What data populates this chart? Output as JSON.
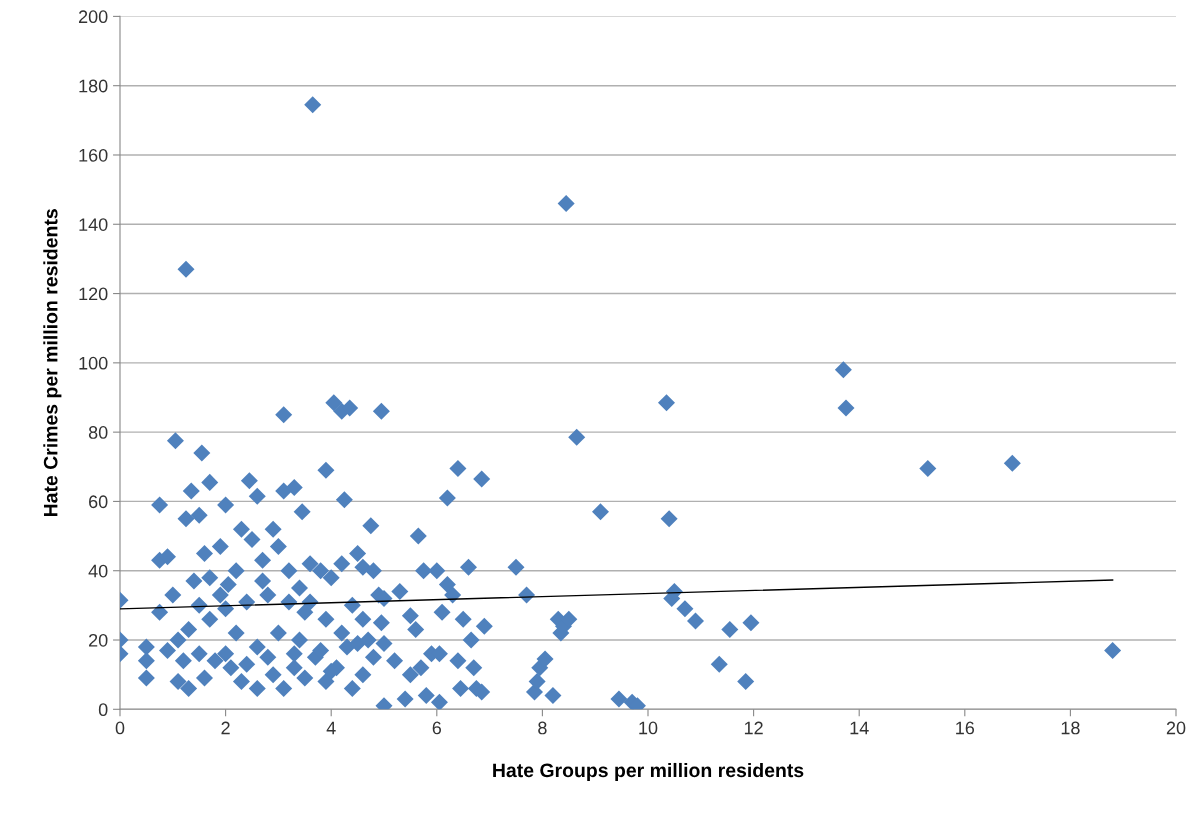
{
  "chart_data": {
    "type": "scatter",
    "xlabel": "Hate Groups per million residents",
    "ylabel": "Hate Crimes per million residents",
    "xlim": [
      0,
      20
    ],
    "xticks": [
      0,
      2,
      4,
      6,
      8,
      10,
      12,
      14,
      16,
      18,
      20
    ],
    "ylim": [
      0,
      200
    ],
    "yticks": [
      0,
      20,
      40,
      60,
      80,
      100,
      120,
      140,
      160,
      180,
      200
    ],
    "grid": "y",
    "legend": false,
    "series": [
      {
        "color": "#4f81bd",
        "marker": "diamond",
        "x": [
          3.65,
          1.25,
          8.45,
          13.7,
          13.75,
          10.35,
          15.3,
          16.9,
          18.8,
          8.65,
          9.1,
          10.4,
          10.45,
          10.5,
          10.7,
          10.9,
          11.35,
          11.55,
          11.85,
          11.95,
          9.45,
          9.7,
          9.8,
          7.5,
          7.7,
          7.85,
          7.9,
          7.95,
          8.05,
          8.2,
          8.3,
          8.35,
          8.4,
          8.5,
          6.85,
          6.2,
          6.4,
          5.65,
          4.95,
          4.2,
          4.35,
          4.05,
          3.1,
          1.05,
          1.55,
          1.7,
          0.75,
          1.35,
          1.25,
          2.0,
          3.9,
          4.25,
          4.75,
          2.45,
          2.6,
          3.1,
          3.3,
          3.45,
          0,
          0,
          0,
          0.5,
          0.5,
          0.5,
          0.75,
          0.75,
          0.9,
          1.0,
          1.1,
          1.1,
          1.3,
          1.5,
          1.6,
          1.4,
          1.5,
          1.7,
          1.9,
          2.05,
          2.2,
          2.3,
          2.5,
          2.7,
          2.9,
          3.0,
          3.2,
          3.4,
          3.6,
          3.8,
          4.0,
          4.2,
          4.5,
          4.6,
          4.8,
          4.9,
          5.0,
          4.4,
          3.9,
          3.5,
          3.2,
          2.8,
          2.4,
          2.0,
          1.7,
          1.3,
          1.5,
          1.8,
          2.1,
          2.3,
          2.6,
          2.9,
          3.1,
          3.3,
          3.5,
          3.7,
          3.9,
          4.1,
          4.3,
          4.4,
          4.6,
          4.8,
          5.0,
          5.0,
          5.2,
          5.4,
          5.3,
          5.5,
          5.6,
          5.7,
          5.8,
          5.9,
          6.0,
          6.1,
          6.05,
          6.2,
          6.3,
          6.4,
          6.45,
          6.5,
          6.6,
          6.65,
          6.7,
          6.75,
          6.9,
          6.85,
          6.05,
          5.75,
          5.5,
          2.2,
          2.6,
          3.0,
          3.4,
          3.8,
          4.2,
          4.6,
          2.0,
          1.2,
          0.9,
          1.6,
          2.4,
          2.8,
          3.3,
          4.0,
          4.5,
          3.6,
          2.7,
          1.9,
          4.7,
          4.95
        ],
        "values": [
          174.5,
          127,
          146,
          98,
          87,
          88.5,
          69.5,
          71,
          17,
          78.5,
          57,
          55,
          32,
          34,
          29,
          25.5,
          13,
          23,
          8,
          25,
          3,
          2,
          1,
          41,
          33,
          5,
          8,
          12,
          14.5,
          4,
          26,
          22,
          24,
          26,
          66.5,
          61,
          69.5,
          50,
          86,
          86,
          87,
          88.5,
          85,
          77.5,
          74,
          65.5,
          59,
          63,
          55,
          59,
          69,
          60.5,
          53,
          66,
          61.5,
          63,
          64,
          57,
          31.5,
          20,
          16,
          18,
          14,
          9,
          43,
          28,
          44,
          33,
          20,
          8,
          6,
          56,
          45,
          37,
          30,
          38,
          47,
          36,
          40,
          52,
          49,
          43,
          52,
          47,
          40,
          35,
          42,
          40,
          38,
          42,
          45,
          41,
          40,
          33,
          32,
          30,
          26,
          28,
          31,
          33,
          31,
          29,
          26,
          23,
          16,
          14,
          12,
          8,
          6,
          10,
          6,
          12,
          9,
          15,
          8,
          12,
          18,
          6,
          10,
          15,
          1,
          19,
          14,
          3,
          34,
          27,
          23,
          12,
          4,
          16,
          40,
          28,
          2,
          36,
          33,
          14,
          6,
          26,
          41,
          20,
          12,
          6,
          24,
          5,
          16,
          40,
          10,
          22,
          18,
          22,
          20,
          17,
          22,
          26,
          16,
          14,
          17,
          9,
          13,
          15,
          16,
          11,
          19,
          31,
          37,
          33,
          20,
          25
        ]
      },
      {
        "type": "line",
        "color": "#000000",
        "marker": "none",
        "x": [
          0,
          18.8
        ],
        "values": [
          29,
          37.3
        ]
      }
    ]
  }
}
